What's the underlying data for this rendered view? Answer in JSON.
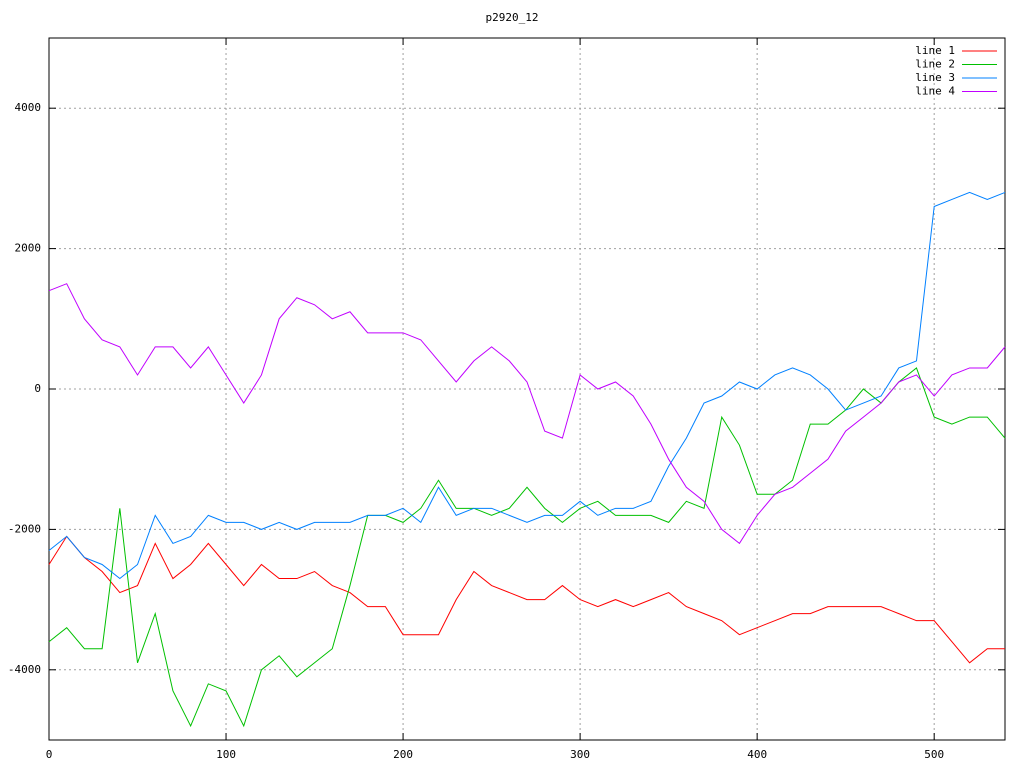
{
  "chart_data": {
    "type": "line",
    "title": "p2920_12",
    "x": [
      0,
      10,
      20,
      30,
      40,
      50,
      60,
      70,
      80,
      90,
      100,
      110,
      120,
      130,
      140,
      150,
      160,
      170,
      180,
      190,
      200,
      210,
      220,
      230,
      240,
      250,
      260,
      270,
      280,
      290,
      300,
      310,
      320,
      330,
      340,
      350,
      360,
      370,
      380,
      390,
      400,
      410,
      420,
      430,
      440,
      450,
      460,
      470,
      480,
      490,
      500,
      510,
      520,
      530,
      540
    ],
    "series": [
      {
        "name": "line 1",
        "color": "#ff0000",
        "values": [
          -2500,
          -2100,
          -2400,
          -2600,
          -2900,
          -2800,
          -2200,
          -2700,
          -2500,
          -2200,
          -2500,
          -2800,
          -2500,
          -2700,
          -2700,
          -2600,
          -2800,
          -2900,
          -3100,
          -3100,
          -3500,
          -3500,
          -3500,
          -3000,
          -2600,
          -2800,
          -2900,
          -3000,
          -3000,
          -2800,
          -3000,
          -3100,
          -3000,
          -3100,
          -3000,
          -2900,
          -3100,
          -3200,
          -3300,
          -3500,
          -3400,
          -3300,
          -3200,
          -3200,
          -3100,
          -3100,
          -3100,
          -3100,
          -3200,
          -3300,
          -3300,
          -3600,
          -3900,
          -3700,
          -3700
        ]
      },
      {
        "name": "line 2",
        "color": "#00c000",
        "values": [
          -3600,
          -3400,
          -3700,
          -3700,
          -1700,
          -3900,
          -3200,
          -4300,
          -4800,
          -4200,
          -4300,
          -4800,
          -4000,
          -3800,
          -4100,
          -3900,
          -3700,
          -2800,
          -1800,
          -1800,
          -1900,
          -1700,
          -1300,
          -1700,
          -1700,
          -1800,
          -1700,
          -1400,
          -1700,
          -1900,
          -1700,
          -1600,
          -1800,
          -1800,
          -1800,
          -1900,
          -1600,
          -1700,
          -400,
          -800,
          -1500,
          -1500,
          -1300,
          -500,
          -500,
          -300,
          0,
          -200,
          100,
          300,
          -400,
          -500,
          -400,
          -400,
          -700
        ]
      },
      {
        "name": "line 3",
        "color": "#0080ff",
        "values": [
          -2300,
          -2100,
          -2400,
          -2500,
          -2700,
          -2500,
          -1800,
          -2200,
          -2100,
          -1800,
          -1900,
          -1900,
          -2000,
          -1900,
          -2000,
          -1900,
          -1900,
          -1900,
          -1800,
          -1800,
          -1700,
          -1900,
          -1400,
          -1800,
          -1700,
          -1700,
          -1800,
          -1900,
          -1800,
          -1800,
          -1600,
          -1800,
          -1700,
          -1700,
          -1600,
          -1100,
          -700,
          -200,
          -100,
          100,
          0,
          200,
          300,
          200,
          0,
          -300,
          -200,
          -100,
          300,
          400,
          2600,
          2700,
          2800,
          2700,
          2800
        ]
      },
      {
        "name": "line 4",
        "color": "#c000ff",
        "values": [
          1400,
          1500,
          1000,
          700,
          600,
          200,
          600,
          600,
          300,
          600,
          200,
          -200,
          200,
          1000,
          1300,
          1200,
          1000,
          1100,
          800,
          800,
          800,
          700,
          400,
          100,
          400,
          600,
          400,
          100,
          -600,
          -700,
          200,
          0,
          100,
          -100,
          -500,
          -1000,
          -1400,
          -1600,
          -2000,
          -2200,
          -1800,
          -1500,
          -1400,
          -1200,
          -1000,
          -600,
          -400,
          -200,
          100,
          200,
          -100,
          200,
          300,
          300,
          600
        ]
      }
    ],
    "xlim": [
      0,
      540
    ],
    "xticks": [
      0,
      100,
      200,
      300,
      400,
      500
    ],
    "ylim": [
      -5000,
      5000
    ],
    "yticks": [
      -4000,
      -2000,
      0,
      2000,
      4000
    ],
    "grid": true,
    "legend": "top-right"
  }
}
